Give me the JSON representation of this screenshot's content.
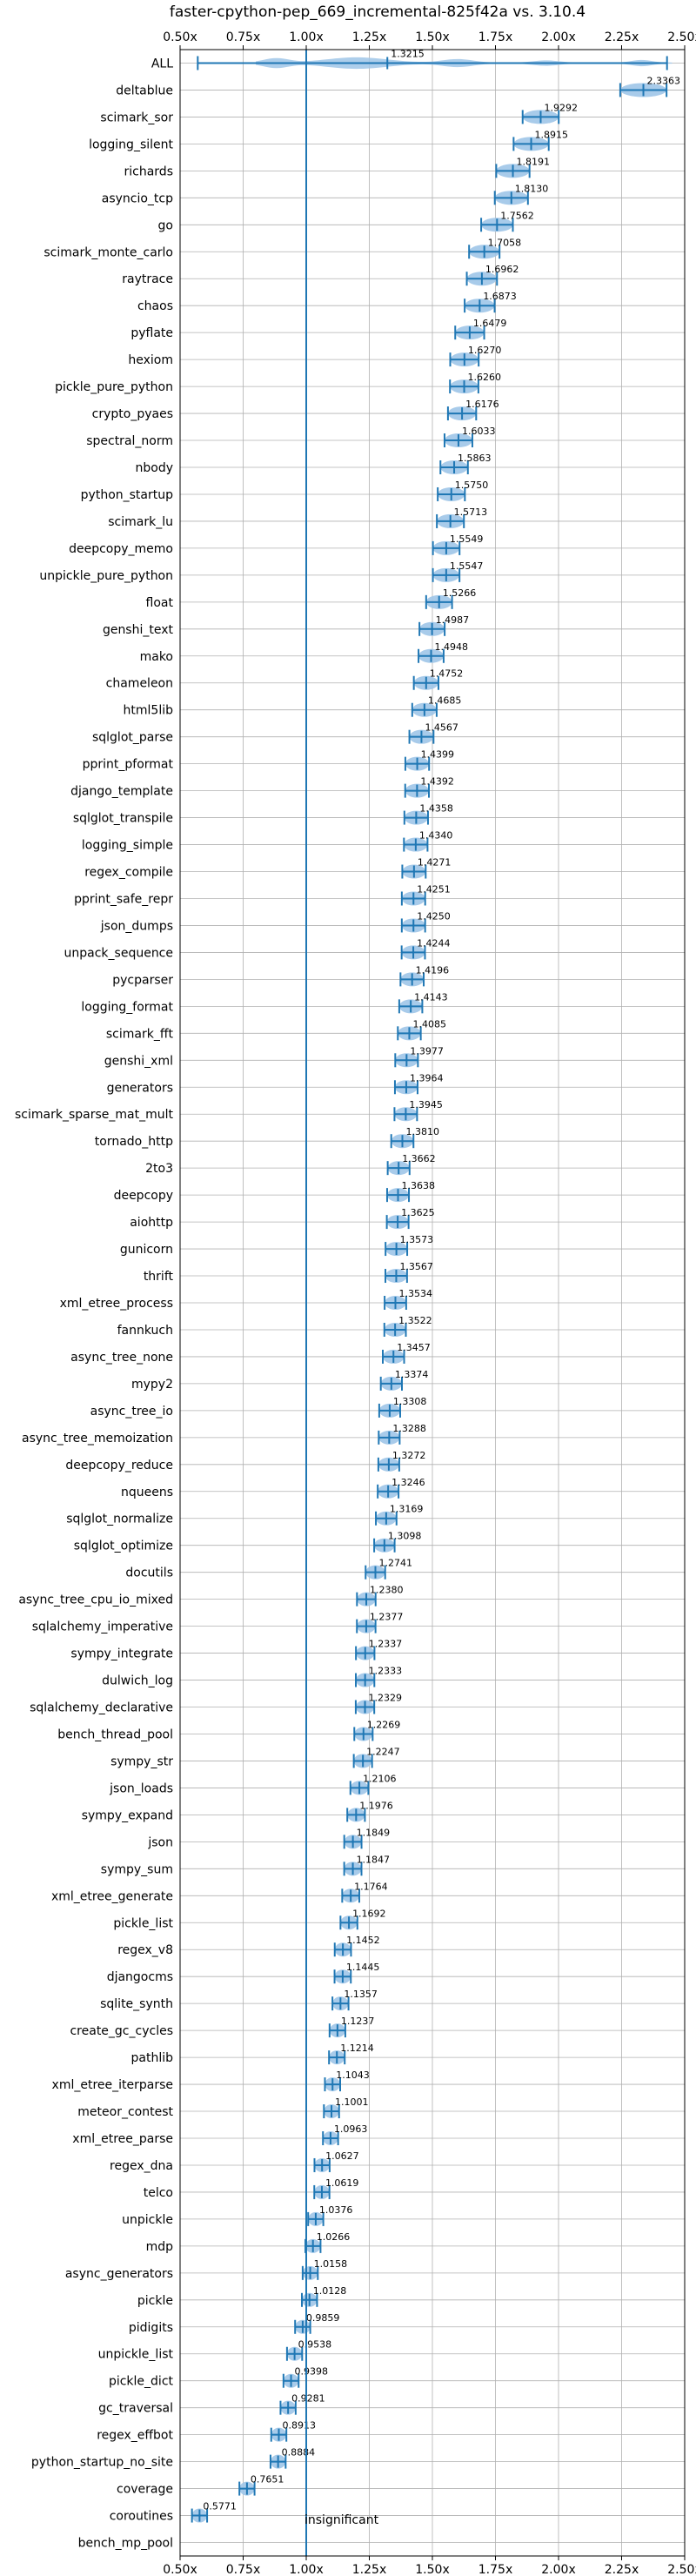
{
  "chart_data": {
    "type": "violin",
    "orientation": "horizontal",
    "title": "faster-cpython-pep_669_incremental-825f42a vs. 3.10.4",
    "xlim": [
      0.5,
      2.5
    ],
    "xticks": [
      "0.50x",
      "0.75x",
      "1.00x",
      "1.25x",
      "1.50x",
      "1.75x",
      "2.00x",
      "2.25x",
      "2.50x"
    ],
    "xtick_values": [
      0.5,
      0.75,
      1.0,
      1.25,
      1.5,
      1.75,
      2.0,
      2.25,
      2.5
    ],
    "reference_line": 1.0,
    "annotation": "insignificant",
    "colors": {
      "violin": "#9fc5e8",
      "accent": "#1f77b4",
      "grid": "#b0b0b0"
    },
    "benchmarks": [
      {
        "name": "ALL",
        "value": 1.3215
      },
      {
        "name": "deltablue",
        "value": 2.3363
      },
      {
        "name": "scimark_sor",
        "value": 1.9292
      },
      {
        "name": "logging_silent",
        "value": 1.8915
      },
      {
        "name": "richards",
        "value": 1.8191
      },
      {
        "name": "asyncio_tcp",
        "value": 1.813
      },
      {
        "name": "go",
        "value": 1.7562
      },
      {
        "name": "scimark_monte_carlo",
        "value": 1.7058
      },
      {
        "name": "raytrace",
        "value": 1.6962
      },
      {
        "name": "chaos",
        "value": 1.6873
      },
      {
        "name": "pyflate",
        "value": 1.6479
      },
      {
        "name": "hexiom",
        "value": 1.627
      },
      {
        "name": "pickle_pure_python",
        "value": 1.626
      },
      {
        "name": "crypto_pyaes",
        "value": 1.6176
      },
      {
        "name": "spectral_norm",
        "value": 1.6033
      },
      {
        "name": "nbody",
        "value": 1.5863
      },
      {
        "name": "python_startup",
        "value": 1.575
      },
      {
        "name": "scimark_lu",
        "value": 1.5713
      },
      {
        "name": "deepcopy_memo",
        "value": 1.5549
      },
      {
        "name": "unpickle_pure_python",
        "value": 1.5547
      },
      {
        "name": "float",
        "value": 1.5266
      },
      {
        "name": "genshi_text",
        "value": 1.4987
      },
      {
        "name": "mako",
        "value": 1.4948
      },
      {
        "name": "chameleon",
        "value": 1.4752
      },
      {
        "name": "html5lib",
        "value": 1.4685
      },
      {
        "name": "sqlglot_parse",
        "value": 1.4567
      },
      {
        "name": "pprint_pformat",
        "value": 1.4399
      },
      {
        "name": "django_template",
        "value": 1.4392
      },
      {
        "name": "sqlglot_transpile",
        "value": 1.4358
      },
      {
        "name": "logging_simple",
        "value": 1.434
      },
      {
        "name": "regex_compile",
        "value": 1.4271
      },
      {
        "name": "pprint_safe_repr",
        "value": 1.4251
      },
      {
        "name": "json_dumps",
        "value": 1.425
      },
      {
        "name": "unpack_sequence",
        "value": 1.4244
      },
      {
        "name": "pycparser",
        "value": 1.4196
      },
      {
        "name": "logging_format",
        "value": 1.4143
      },
      {
        "name": "scimark_fft",
        "value": 1.4085
      },
      {
        "name": "genshi_xml",
        "value": 1.3977
      },
      {
        "name": "generators",
        "value": 1.3964
      },
      {
        "name": "scimark_sparse_mat_mult",
        "value": 1.3945
      },
      {
        "name": "tornado_http",
        "value": 1.381
      },
      {
        "name": "2to3",
        "value": 1.3662
      },
      {
        "name": "deepcopy",
        "value": 1.3638
      },
      {
        "name": "aiohttp",
        "value": 1.3625
      },
      {
        "name": "gunicorn",
        "value": 1.3573
      },
      {
        "name": "thrift",
        "value": 1.3567
      },
      {
        "name": "xml_etree_process",
        "value": 1.3534
      },
      {
        "name": "fannkuch",
        "value": 1.3522
      },
      {
        "name": "async_tree_none",
        "value": 1.3457
      },
      {
        "name": "mypy2",
        "value": 1.3374
      },
      {
        "name": "async_tree_io",
        "value": 1.3308
      },
      {
        "name": "async_tree_memoization",
        "value": 1.3288
      },
      {
        "name": "deepcopy_reduce",
        "value": 1.3272
      },
      {
        "name": "nqueens",
        "value": 1.3246
      },
      {
        "name": "sqlglot_normalize",
        "value": 1.3169
      },
      {
        "name": "sqlglot_optimize",
        "value": 1.3098
      },
      {
        "name": "docutils",
        "value": 1.2741
      },
      {
        "name": "async_tree_cpu_io_mixed",
        "value": 1.238
      },
      {
        "name": "sqlalchemy_imperative",
        "value": 1.2377
      },
      {
        "name": "sympy_integrate",
        "value": 1.2337
      },
      {
        "name": "dulwich_log",
        "value": 1.2333
      },
      {
        "name": "sqlalchemy_declarative",
        "value": 1.2329
      },
      {
        "name": "bench_thread_pool",
        "value": 1.2269
      },
      {
        "name": "sympy_str",
        "value": 1.2247
      },
      {
        "name": "json_loads",
        "value": 1.2106
      },
      {
        "name": "sympy_expand",
        "value": 1.1976
      },
      {
        "name": "json",
        "value": 1.1849
      },
      {
        "name": "sympy_sum",
        "value": 1.1847
      },
      {
        "name": "xml_etree_generate",
        "value": 1.1764
      },
      {
        "name": "pickle_list",
        "value": 1.1692
      },
      {
        "name": "regex_v8",
        "value": 1.1452
      },
      {
        "name": "djangocms",
        "value": 1.1445
      },
      {
        "name": "sqlite_synth",
        "value": 1.1357
      },
      {
        "name": "create_gc_cycles",
        "value": 1.1237
      },
      {
        "name": "pathlib",
        "value": 1.1214
      },
      {
        "name": "xml_etree_iterparse",
        "value": 1.1043
      },
      {
        "name": "meteor_contest",
        "value": 1.1001
      },
      {
        "name": "xml_etree_parse",
        "value": 1.0963
      },
      {
        "name": "regex_dna",
        "value": 1.0627
      },
      {
        "name": "telco",
        "value": 1.0619
      },
      {
        "name": "unpickle",
        "value": 1.0376
      },
      {
        "name": "mdp",
        "value": 1.0266
      },
      {
        "name": "async_generators",
        "value": 1.0158
      },
      {
        "name": "pickle",
        "value": 1.0128
      },
      {
        "name": "pidigits",
        "value": 0.9859
      },
      {
        "name": "unpickle_list",
        "value": 0.9538
      },
      {
        "name": "pickle_dict",
        "value": 0.9398
      },
      {
        "name": "gc_traversal",
        "value": 0.9281
      },
      {
        "name": "regex_effbot",
        "value": 0.8913
      },
      {
        "name": "python_startup_no_site",
        "value": 0.8884
      },
      {
        "name": "coverage",
        "value": 0.7651
      },
      {
        "name": "coroutines",
        "value": 0.5771
      },
      {
        "name": "bench_mp_pool",
        "value": null
      }
    ],
    "value_labels": [
      "1.3215",
      "2.3363",
      "1.9292",
      "1.8915",
      "1.8191",
      "1.8130",
      "1.7562",
      "1.7058",
      "1.6962",
      "1.6873",
      "1.6479",
      "1.6270",
      "1.6260",
      "1.6176",
      "1.6033",
      "1.5863",
      "1.5750",
      "1.5713",
      "1.5549",
      "1.5547",
      "1.5266",
      "1.4987",
      "1.4948",
      "1.4752",
      "1.4685",
      "1.4567",
      "1.4399",
      "1.4392",
      "1.4358",
      "1.4340",
      "1.4271",
      "1.4251",
      "1.4250",
      "1.4244",
      "1.4196",
      "1.4143",
      "1.4085",
      "1.3977",
      "1.3964",
      "1.3945",
      "1.3810",
      "1.3662",
      "1.3638",
      "1.3625",
      "1.3573",
      "1.3567",
      "1.3534",
      "1.3522",
      "1.3457",
      "1.3374",
      "1.3308",
      "1.3288",
      "1.3272",
      "1.3246",
      "1.3169",
      "1.3098",
      "1.2741",
      "1.2380",
      "1.2377",
      "1.2337",
      "1.2333",
      "1.2329",
      "1.2269",
      "1.2247",
      "1.2106",
      "1.1976",
      "1.1849",
      "1.1847",
      "1.1764",
      "1.1692",
      "1.1452",
      "1.1445",
      "1.1357",
      "1.1237",
      "1.1214",
      "1.1043",
      "1.1001",
      "1.0963",
      "1.0627",
      "1.0619",
      "1.0376",
      "1.0266",
      "1.0158",
      "1.0128",
      "0.9859",
      "0.9538",
      "0.9398",
      "0.9281",
      "0.8913",
      "0.8884",
      "0.7651",
      "0.5771",
      ""
    ]
  }
}
